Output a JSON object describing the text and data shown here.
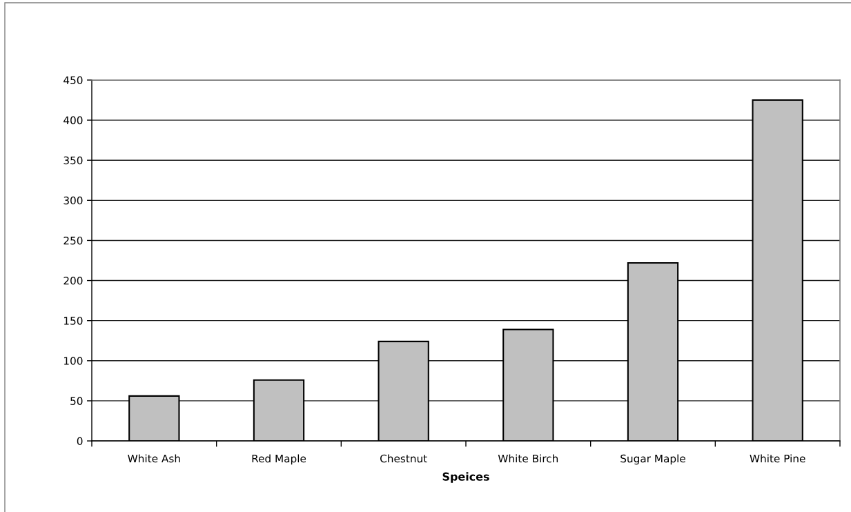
{
  "chart_data": {
    "type": "bar",
    "xlabel": "Speices",
    "categories": [
      "White Ash",
      "Red Maple",
      "Chestnut",
      "White Birch",
      "Sugar Maple",
      "White Pine"
    ],
    "values": [
      56,
      76,
      124,
      139,
      222,
      425
    ],
    "color": "#c0c0c0",
    "ylim": [
      0,
      450
    ],
    "yticks": [
      0,
      50,
      100,
      150,
      200,
      250,
      300,
      350,
      400,
      450
    ],
    "grid": "y",
    "legend": false
  }
}
